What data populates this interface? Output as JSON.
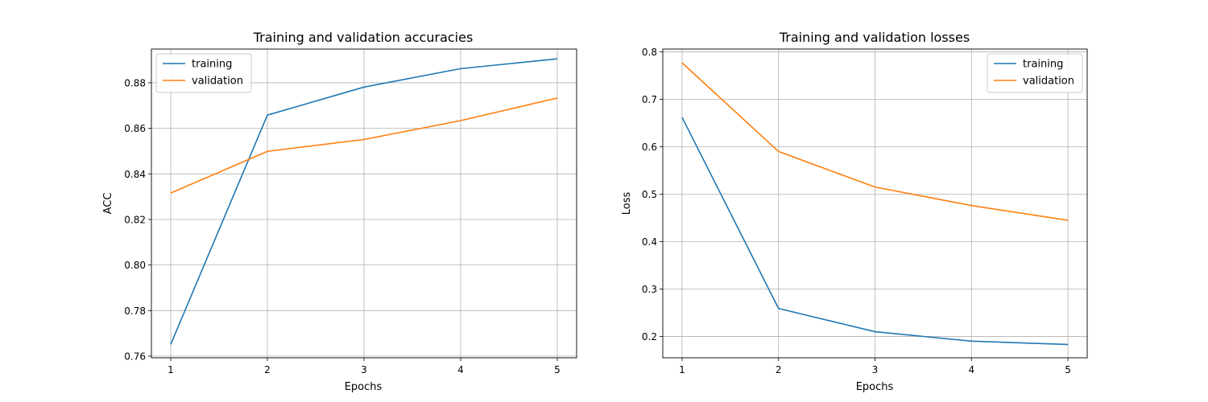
{
  "colors": {
    "training": "#1f77b4",
    "validation": "#ff7f0e",
    "grid": "#b0b0b0",
    "frame": "#000000"
  },
  "chart_data": [
    {
      "type": "line",
      "title": "Training and validation accuracies",
      "xlabel": "Epochs",
      "ylabel": "ACC",
      "x": [
        1,
        2,
        3,
        4,
        5
      ],
      "xlim": [
        0.8,
        5.2
      ],
      "ylim": [
        0.7593,
        0.8948
      ],
      "xticks": [
        1,
        2,
        3,
        4,
        5
      ],
      "yticks": [
        0.76,
        0.78,
        0.8,
        0.82,
        0.84,
        0.86,
        0.88
      ],
      "ytick_labels": [
        "0.76",
        "0.78",
        "0.80",
        "0.82",
        "0.84",
        "0.86",
        "0.88"
      ],
      "grid": true,
      "legend_position": "top-left",
      "series": [
        {
          "name": "training",
          "color": "#1f77b4",
          "values": [
            0.7652,
            0.8658,
            0.8781,
            0.8862,
            0.8905
          ]
        },
        {
          "name": "validation",
          "color": "#ff7f0e",
          "values": [
            0.8316,
            0.8499,
            0.8551,
            0.8634,
            0.8733
          ]
        }
      ]
    },
    {
      "type": "line",
      "title": "Training and validation losses",
      "xlabel": "Epochs",
      "ylabel": "Loss",
      "x": [
        1,
        2,
        3,
        4,
        5
      ],
      "xlim": [
        0.8,
        5.2
      ],
      "ylim": [
        0.155,
        0.806
      ],
      "xticks": [
        1,
        2,
        3,
        4,
        5
      ],
      "yticks": [
        0.2,
        0.3,
        0.4,
        0.5,
        0.6,
        0.7,
        0.8
      ],
      "ytick_labels": [
        "0.2",
        "0.3",
        "0.4",
        "0.5",
        "0.6",
        "0.7",
        "0.8"
      ],
      "grid": true,
      "legend_position": "top-right",
      "series": [
        {
          "name": "training",
          "color": "#1f77b4",
          "values": [
            0.662,
            0.259,
            0.21,
            0.19,
            0.183
          ]
        },
        {
          "name": "validation",
          "color": "#ff7f0e",
          "values": [
            0.777,
            0.59,
            0.515,
            0.476,
            0.445
          ]
        }
      ]
    }
  ]
}
